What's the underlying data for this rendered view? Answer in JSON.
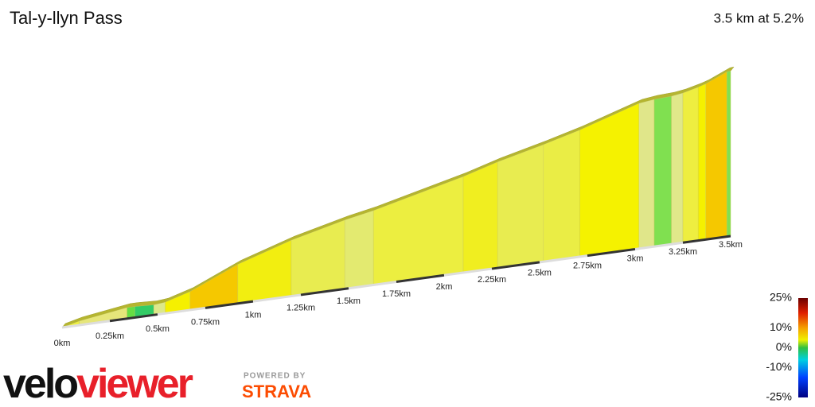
{
  "chart_data": {
    "type": "profile",
    "title": "Tal-y-llyn Pass",
    "subtitle": "3.5 km at 5.2%",
    "x": [
      0,
      0.09,
      0.34,
      0.38,
      0.48,
      0.54,
      0.67,
      0.92,
      1.2,
      1.48,
      1.63,
      2.1,
      2.28,
      2.52,
      2.71,
      3.02,
      3.1,
      3.19,
      3.25,
      3.33,
      3.37,
      3.48
    ],
    "values": [
      5,
      3,
      0,
      -1,
      2,
      6,
      9,
      6.5,
      5,
      4,
      5,
      6,
      5,
      5.5,
      6.5,
      2.5,
      1,
      3,
      5,
      6.5,
      9,
      1.5
    ],
    "colors": [
      "#eef040",
      "#e6e67a",
      "#66dd44",
      "#33cc66",
      "#dde88a",
      "#f5f000",
      "#f5c800",
      "#f2ee10",
      "#e8ec50",
      "#e3ea70",
      "#ecee40",
      "#f0ee20",
      "#e8ec50",
      "#eaed45",
      "#f5f200",
      "#e0e68a",
      "#80e050",
      "#e0e88a",
      "#eeee40",
      "#f5f000",
      "#f5c800",
      "#80e050"
    ],
    "xlim": [
      0,
      3.5
    ],
    "xticks": [
      {
        "value": 0,
        "label": "0km"
      },
      {
        "value": 0.25,
        "label": "0.25km"
      },
      {
        "value": 0.5,
        "label": "0.5km"
      },
      {
        "value": 0.75,
        "label": "0.75km"
      },
      {
        "value": 1,
        "label": "1km"
      },
      {
        "value": 1.25,
        "label": "1.25km"
      },
      {
        "value": 1.5,
        "label": "1.5km"
      },
      {
        "value": 1.75,
        "label": "1.75km"
      },
      {
        "value": 2,
        "label": "2km"
      },
      {
        "value": 2.25,
        "label": "2.25km"
      },
      {
        "value": 2.5,
        "label": "2.5km"
      },
      {
        "value": 2.75,
        "label": "2.75km"
      },
      {
        "value": 3,
        "label": "3km"
      },
      {
        "value": 3.25,
        "label": "3.25km"
      },
      {
        "value": 3.5,
        "label": "3.5km"
      }
    ],
    "colorbar_lim": [
      -25,
      25
    ],
    "colorbar_ticks": [
      {
        "value": 25,
        "label": "25%"
      },
      {
        "value": 10,
        "label": "10%"
      },
      {
        "value": 0,
        "label": "0%"
      },
      {
        "value": -10,
        "label": "-10%"
      },
      {
        "value": -25,
        "label": "-25%"
      }
    ]
  },
  "branding": {
    "logo_part1": "velo",
    "logo_part2": "viewer",
    "powered": "POWERED BY",
    "strava": "STRAVA"
  }
}
